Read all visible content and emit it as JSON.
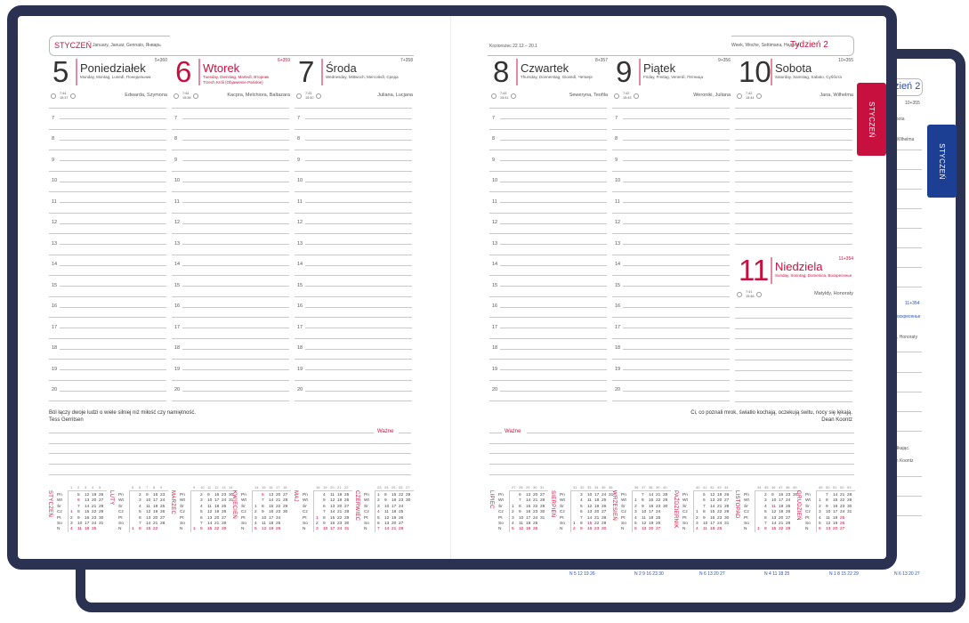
{
  "colors": {
    "frame": "#2b3150",
    "accent_red": "#c8103e",
    "accent_blue": "#1c3f94",
    "rule": "#c9c9c9"
  },
  "tabs": {
    "front_month": "STYCZEŃ",
    "back_month": "STYCZEŃ"
  },
  "weekday_abbr": [
    "Pn",
    "Wt",
    "Śr",
    "Cz",
    "Pt",
    "So",
    "N"
  ],
  "hours": [
    "7",
    "8",
    "9",
    "10",
    "11",
    "12",
    "13",
    "14",
    "15",
    "16",
    "17",
    "18",
    "19",
    "20"
  ],
  "left_page": {
    "month_label": "STYCZEŃ",
    "month_translations": "January, Januar, Gennaio, Январь",
    "days": [
      {
        "number": "5",
        "name": "Poniedziałek",
        "translations": "Monday, Montag, Lunedì, Понедельник",
        "extra": "",
        "count": "5+360",
        "sunrise": "7:44",
        "sunset": "15:37",
        "namedays": "Edwarda, Szymona",
        "accent": false
      },
      {
        "number": "6",
        "name": "Wtorek",
        "translations": "Tuesday, Dienstag, Martedì, Вторник",
        "extra": "Trzech Króli (Objawienie Pańskie)",
        "count": "6+359",
        "sunrise": "7:44",
        "sunset": "15:38",
        "namedays": "Kacpra, Melchiora, Baltazara",
        "accent": true
      },
      {
        "number": "7",
        "name": "Środa",
        "translations": "Wednesday, Mittwoch, Mercoledì, Среда",
        "extra": "",
        "count": "7+358",
        "sunrise": "7:43",
        "sunset": "15:40",
        "namedays": "Juliana, Lucjana",
        "accent": false
      }
    ],
    "quote": "Ból łączy dwoje ludzi o wiele silniej niż miłość czy namiętność.",
    "quote_author": "Tess Gerritsen",
    "notes_label": "Ważne",
    "mini_calendars": [
      {
        "name": "STYCZEŃ",
        "weeks": [
          "1",
          "2",
          "3",
          "4",
          "5"
        ],
        "holidays": [
          "1",
          "6"
        ],
        "rows": [
          [
            "",
            "5",
            "12",
            "19",
            "26"
          ],
          [
            "",
            "6",
            "13",
            "20",
            "27"
          ],
          [
            "",
            "7",
            "14",
            "21",
            "28"
          ],
          [
            "1",
            "8",
            "15",
            "22",
            "29"
          ],
          [
            "2",
            "9",
            "16",
            "23",
            "30"
          ],
          [
            "3",
            "10",
            "17",
            "24",
            "31"
          ],
          [
            "4",
            "11",
            "18",
            "25",
            ""
          ]
        ]
      },
      {
        "name": "LUTY",
        "weeks": [
          "5",
          "6",
          "7",
          "8",
          "9"
        ],
        "holidays": [],
        "rows": [
          [
            "",
            "2",
            "9",
            "16",
            "23"
          ],
          [
            "",
            "3",
            "10",
            "17",
            "24"
          ],
          [
            "",
            "4",
            "11",
            "18",
            "25"
          ],
          [
            "",
            "5",
            "12",
            "19",
            "26"
          ],
          [
            "",
            "6",
            "13",
            "20",
            "27"
          ],
          [
            "",
            "7",
            "14",
            "21",
            "28"
          ],
          [
            "1",
            "8",
            "15",
            "22",
            ""
          ]
        ]
      },
      {
        "name": "MARZEC",
        "weeks": [
          "9",
          "10",
          "11",
          "12",
          "13",
          "14"
        ],
        "holidays": [],
        "rows": [
          [
            "",
            "2",
            "9",
            "16",
            "23",
            "30"
          ],
          [
            "",
            "3",
            "10",
            "17",
            "24",
            "31"
          ],
          [
            "",
            "4",
            "11",
            "18",
            "25",
            ""
          ],
          [
            "",
            "5",
            "12",
            "19",
            "26",
            ""
          ],
          [
            "",
            "6",
            "13",
            "20",
            "27",
            ""
          ],
          [
            "",
            "7",
            "14",
            "21",
            "28",
            ""
          ],
          [
            "1",
            "8",
            "15",
            "22",
            "29",
            ""
          ]
        ]
      },
      {
        "name": "KWIECIEŃ",
        "weeks": [
          "14",
          "15",
          "16",
          "17",
          "18"
        ],
        "holidays": [
          "5",
          "6"
        ],
        "rows": [
          [
            "",
            "6",
            "13",
            "20",
            "27"
          ],
          [
            "",
            "7",
            "14",
            "21",
            "28"
          ],
          [
            "1",
            "8",
            "15",
            "22",
            "29"
          ],
          [
            "2",
            "9",
            "16",
            "23",
            "30"
          ],
          [
            "3",
            "10",
            "17",
            "24",
            ""
          ],
          [
            "4",
            "11",
            "18",
            "25",
            ""
          ],
          [
            "5",
            "12",
            "19",
            "26",
            ""
          ]
        ]
      },
      {
        "name": "MAJ",
        "weeks": [
          "18",
          "19",
          "20",
          "21",
          "22"
        ],
        "holidays": [
          "1",
          "3",
          "24"
        ],
        "rows": [
          [
            "",
            "4",
            "11",
            "18",
            "25"
          ],
          [
            "",
            "5",
            "12",
            "19",
            "26"
          ],
          [
            "",
            "6",
            "13",
            "20",
            "27"
          ],
          [
            "",
            "7",
            "14",
            "21",
            "28"
          ],
          [
            "1",
            "8",
            "15",
            "22",
            "29"
          ],
          [
            "2",
            "9",
            "16",
            "23",
            "30"
          ],
          [
            "3",
            "10",
            "17",
            "24",
            "31"
          ]
        ]
      },
      {
        "name": "CZERWIEC",
        "weeks": [
          "23",
          "24",
          "25",
          "26",
          "27"
        ],
        "holidays": [
          "4"
        ],
        "rows": [
          [
            "1",
            "8",
            "15",
            "22",
            "29"
          ],
          [
            "2",
            "9",
            "16",
            "23",
            "30"
          ],
          [
            "3",
            "10",
            "17",
            "24",
            ""
          ],
          [
            "4",
            "11",
            "18",
            "25",
            ""
          ],
          [
            "5",
            "12",
            "19",
            "26",
            ""
          ],
          [
            "6",
            "13",
            "20",
            "27",
            ""
          ],
          [
            "7",
            "14",
            "21",
            "28",
            ""
          ]
        ]
      }
    ]
  },
  "right_page": {
    "zodiac": "Koziorożec 22.12 – 20.1",
    "week_translations": "Week, Woche, Settimana, Неделя",
    "week_label": "Tydzień 2",
    "days": [
      {
        "number": "8",
        "name": "Czwartek",
        "translations": "Thursday, Donnerstag, Giovedì, Четверг",
        "count": "8+357",
        "sunrise": "7:43",
        "sunset": "15:41",
        "namedays": "Seweryna, Teofila",
        "accent": false
      },
      {
        "number": "9",
        "name": "Piątek",
        "translations": "Friday, Freitag, Venerdì, Пятница",
        "count": "9+356",
        "sunrise": "7:42",
        "sunset": "15:43",
        "namedays": "Weroniki, Juliana",
        "accent": false
      },
      {
        "number": "10",
        "name": "Sobota",
        "translations": "Saturday, Samstag, Sabato, Суббота",
        "count": "10+355",
        "sunrise": "7:42",
        "sunset": "15:44",
        "namedays": "Jana, Wilhelma",
        "accent": false
      }
    ],
    "sunday": {
      "number": "11",
      "name": "Niedziela",
      "translations": "Sunday, Sonntag, Domenica, Воскресенье",
      "count": "11+354",
      "sunrise": "7:41",
      "sunset": "15:46",
      "namedays": "Matyldy, Honoraty",
      "accent": true
    },
    "quote": "Ci, co poznali mrok, światło kochają, oczekują świtu, nocy się lękają.",
    "quote_author": "Dean Koontz",
    "notes_label": "Ważne",
    "mini_calendars": [
      {
        "name": "LIPIEC",
        "weeks": [
          "27",
          "28",
          "29",
          "30",
          "31"
        ],
        "holidays": [],
        "rows": [
          [
            "",
            "6",
            "13",
            "20",
            "27"
          ],
          [
            "",
            "7",
            "14",
            "21",
            "28"
          ],
          [
            "1",
            "8",
            "15",
            "22",
            "29"
          ],
          [
            "2",
            "9",
            "16",
            "23",
            "30"
          ],
          [
            "3",
            "10",
            "17",
            "24",
            "31"
          ],
          [
            "4",
            "11",
            "18",
            "25",
            ""
          ],
          [
            "5",
            "12",
            "19",
            "26",
            ""
          ]
        ]
      },
      {
        "name": "SIERPIEŃ",
        "weeks": [
          "31",
          "32",
          "33",
          "34",
          "35",
          "36"
        ],
        "holidays": [
          "15"
        ],
        "rows": [
          [
            "",
            "3",
            "10",
            "17",
            "24",
            "31"
          ],
          [
            "",
            "4",
            "11",
            "18",
            "25",
            ""
          ],
          [
            "",
            "5",
            "12",
            "19",
            "26",
            ""
          ],
          [
            "",
            "6",
            "13",
            "20",
            "27",
            ""
          ],
          [
            "",
            "7",
            "14",
            "21",
            "28",
            ""
          ],
          [
            "1",
            "8",
            "15",
            "22",
            "29",
            ""
          ],
          [
            "2",
            "9",
            "16",
            "23",
            "30",
            ""
          ]
        ]
      },
      {
        "name": "WRZESIEŃ",
        "weeks": [
          "36",
          "37",
          "38",
          "39",
          "40"
        ],
        "holidays": [],
        "rows": [
          [
            "",
            "7",
            "14",
            "21",
            "28"
          ],
          [
            "1",
            "8",
            "15",
            "22",
            "29"
          ],
          [
            "2",
            "9",
            "16",
            "23",
            "30"
          ],
          [
            "3",
            "10",
            "17",
            "24",
            ""
          ],
          [
            "4",
            "11",
            "18",
            "25",
            ""
          ],
          [
            "5",
            "12",
            "19",
            "26",
            ""
          ],
          [
            "6",
            "13",
            "20",
            "27",
            ""
          ]
        ]
      },
      {
        "name": "PAŹDZIERNIK",
        "weeks": [
          "40",
          "41",
          "42",
          "43",
          "44"
        ],
        "holidays": [],
        "rows": [
          [
            "",
            "5",
            "12",
            "19",
            "26"
          ],
          [
            "",
            "6",
            "13",
            "20",
            "27"
          ],
          [
            "",
            "7",
            "14",
            "21",
            "28"
          ],
          [
            "1",
            "8",
            "15",
            "22",
            "29"
          ],
          [
            "2",
            "9",
            "16",
            "23",
            "30"
          ],
          [
            "3",
            "10",
            "17",
            "24",
            "31"
          ],
          [
            "4",
            "11",
            "18",
            "25",
            ""
          ]
        ]
      },
      {
        "name": "LISTOPAD",
        "weeks": [
          "44",
          "45",
          "46",
          "47",
          "48",
          "49"
        ],
        "holidays": [
          "1",
          "11"
        ],
        "rows": [
          [
            "",
            "2",
            "9",
            "16",
            "23",
            "30"
          ],
          [
            "",
            "3",
            "10",
            "17",
            "24",
            ""
          ],
          [
            "",
            "4",
            "11",
            "18",
            "25",
            ""
          ],
          [
            "",
            "5",
            "12",
            "19",
            "26",
            ""
          ],
          [
            "",
            "6",
            "13",
            "20",
            "27",
            ""
          ],
          [
            "",
            "7",
            "14",
            "21",
            "28",
            ""
          ],
          [
            "1",
            "8",
            "15",
            "22",
            "29",
            ""
          ]
        ]
      },
      {
        "name": "GRUDZIEŃ",
        "weeks": [
          "49",
          "50",
          "51",
          "52",
          "53"
        ],
        "holidays": [
          "25",
          "26"
        ],
        "rows": [
          [
            "",
            "7",
            "14",
            "21",
            "28"
          ],
          [
            "1",
            "8",
            "15",
            "22",
            "29"
          ],
          [
            "2",
            "9",
            "16",
            "23",
            "30"
          ],
          [
            "3",
            "10",
            "17",
            "24",
            "31"
          ],
          [
            "4",
            "11",
            "18",
            "25",
            ""
          ],
          [
            "5",
            "12",
            "19",
            "26",
            ""
          ],
          [
            "6",
            "13",
            "20",
            "27",
            ""
          ]
        ]
      }
    ]
  },
  "back_planner": {
    "week_label_fragment": "zień 2",
    "count_sat": "10+355",
    "sat_fragment": "obota",
    "namedays_sat_fragment": ", Wilhelma",
    "count_sun": "11+354",
    "sun_fragment": "oскресенье",
    "namedays_sun_fragment": ", Honoraty",
    "quote_fragment": "o łkając.",
    "author_fragment": "an Koontz",
    "bottom_rows": [
      "N  5 12 19 26",
      "N  2 9 16 23 30",
      "N  6 13 20 27",
      "N  4 11 18 25",
      "N  1 8 15 22 29",
      "N  6 13 20 27"
    ]
  }
}
